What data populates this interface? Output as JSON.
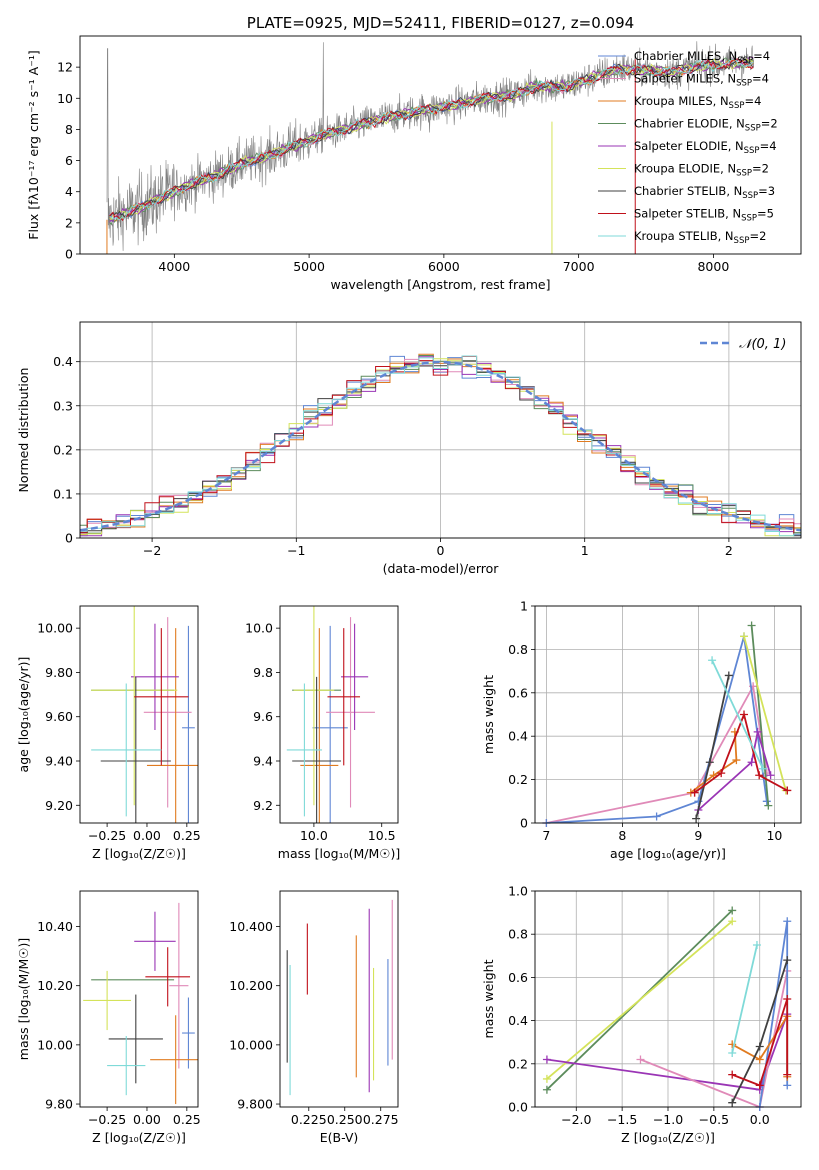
{
  "chart_data": [
    {
      "id": "spectrum",
      "type": "line",
      "title": "PLATE=0925, MJD=52411, FIBERID=0127, z=0.094",
      "xlabel": "wavelength [Angstrom, rest frame]",
      "ylabel": "Flux [fλ10⁻¹⁷ erg cm⁻² s⁻¹ A⁻¹]",
      "xlim": [
        3300,
        8650
      ],
      "ylim": [
        0,
        14
      ],
      "xticks": [
        4000,
        5000,
        6000,
        7000,
        8000
      ],
      "yticks": [
        0,
        2,
        4,
        6,
        8,
        10,
        12
      ],
      "data_series": {
        "name": "",
        "color": "#808080",
        "x": [
          3500,
          3700,
          3900,
          4100,
          4300,
          4500,
          4700,
          4900,
          5100,
          5300,
          5500,
          5700,
          5900,
          6100,
          6300,
          6500,
          6700,
          6900,
          7100,
          7300,
          7500,
          7700,
          7900,
          8100,
          8300
        ],
        "y": [
          2.2,
          2.8,
          3.6,
          4.4,
          5.0,
          5.8,
          6.3,
          7.0,
          7.6,
          8.1,
          8.6,
          9.0,
          9.3,
          9.6,
          10.0,
          10.2,
          10.8,
          10.7,
          11.3,
          11.9,
          11.8,
          11.7,
          12.1,
          12.2,
          12.3
        ]
      },
      "legend": [
        {
          "label": "Chabrier MILES, N",
          "sub": "SSP",
          "suffix": "=4",
          "color": "#5f86d4"
        },
        {
          "label": "Salpeter MILES, N",
          "sub": "SSP",
          "suffix": "=4",
          "color": "#e08ab8"
        },
        {
          "label": "Kroupa MILES, N",
          "sub": "SSP",
          "suffix": "=4",
          "color": "#e07b20"
        },
        {
          "label": "Chabrier ELODIE, N",
          "sub": "SSP",
          "suffix": "=2",
          "color": "#5c8c5c"
        },
        {
          "label": "Salpeter ELODIE, N",
          "sub": "SSP",
          "suffix": "=4",
          "color": "#9a35b5"
        },
        {
          "label": "Kroupa ELODIE, N",
          "sub": "SSP",
          "suffix": "=2",
          "color": "#d4e35a"
        },
        {
          "label": "Chabrier STELIB, N",
          "sub": "SSP",
          "suffix": "=3",
          "color": "#404040"
        },
        {
          "label": "Salpeter STELIB, N",
          "sub": "SSP",
          "suffix": "=5",
          "color": "#c0101a"
        },
        {
          "label": "Kroupa STELIB, N",
          "sub": "SSP",
          "suffix": "=2",
          "color": "#7fdad8"
        }
      ]
    },
    {
      "id": "residuals",
      "type": "histogram",
      "xlabel": "(data-model)/error",
      "ylabel": "Normed distribution",
      "xlim": [
        -2.5,
        2.5
      ],
      "ylim": [
        0,
        0.49
      ],
      "xticks": [
        -2,
        -1,
        0,
        1,
        2
      ],
      "yticks": [
        0.0,
        0.1,
        0.2,
        0.3,
        0.4
      ],
      "grid": true,
      "legend": [
        {
          "label": "𝒩(0, 1)",
          "color": "#5f86d4",
          "style": "dashed"
        }
      ],
      "bin_width": 0.1
    },
    {
      "id": "age_vs_Z",
      "type": "errorbar",
      "xlabel": "Z [log₁₀(Z/Z☉)]",
      "ylabel": "age  [log₁₀(age/yr)]",
      "xlim": [
        -0.42,
        0.32
      ],
      "ylim": [
        9.12,
        10.1
      ],
      "xticks": [
        -0.25,
        0.0,
        0.25
      ],
      "yticks": [
        9.2,
        9.4,
        9.6,
        9.8,
        10.0
      ],
      "points": [
        {
          "color": "#5f86d4",
          "x": 0.26,
          "xerr": 0.04,
          "y": 9.55,
          "yerr": 0.46
        },
        {
          "color": "#e08ab8",
          "x": 0.13,
          "xerr": 0.15,
          "y": 9.62,
          "yerr": 0.43
        },
        {
          "color": "#e07b20",
          "x": 0.18,
          "xerr": 0.18,
          "y": 9.38,
          "yerr": 0.62
        },
        {
          "color": "#5c8c5c",
          "x": -0.09,
          "xerr": 0.26,
          "y": 9.72,
          "yerr": 0.0
        },
        {
          "color": "#9a35b5",
          "x": 0.05,
          "xerr": 0.15,
          "y": 9.78,
          "yerr": 0.24
        },
        {
          "color": "#d4e35a",
          "x": -0.08,
          "xerr": 0.27,
          "y": 9.72,
          "yerr": 0.52
        },
        {
          "color": "#404040",
          "x": -0.07,
          "xerr": 0.22,
          "y": 9.4,
          "yerr": 0.38
        },
        {
          "color": "#c0101a",
          "x": 0.09,
          "xerr": 0.17,
          "y": 9.69,
          "yerr": 0.31
        },
        {
          "color": "#7fdad8",
          "x": -0.13,
          "xerr": 0.22,
          "y": 9.45,
          "yerr": 0.3
        }
      ]
    },
    {
      "id": "age_vs_mass",
      "type": "errorbar",
      "xlabel": "mass [log₁₀(M/M☉)]",
      "xlim": [
        9.75,
        10.62
      ],
      "ylim": [
        9.12,
        10.1
      ],
      "xticks": [
        10.0,
        10.5
      ],
      "yticks": [
        9.2,
        9.4,
        9.6,
        9.8,
        10.0
      ],
      "points": [
        {
          "color": "#5f86d4",
          "x": 10.12,
          "xerr": 0.13,
          "y": 9.55,
          "yerr": 0.46
        },
        {
          "color": "#e08ab8",
          "x": 10.27,
          "xerr": 0.18,
          "y": 9.62,
          "yerr": 0.43
        },
        {
          "color": "#e07b20",
          "x": 10.04,
          "xerr": 0.14,
          "y": 9.38,
          "yerr": 0.62
        },
        {
          "color": "#5c8c5c",
          "x": 10.02,
          "xerr": 0.18,
          "y": 9.72,
          "yerr": 0.0
        },
        {
          "color": "#9a35b5",
          "x": 10.3,
          "xerr": 0.1,
          "y": 9.78,
          "yerr": 0.24
        },
        {
          "color": "#d4e35a",
          "x": 10.0,
          "xerr": 0.15,
          "y": 9.72,
          "yerr": 0.52
        },
        {
          "color": "#404040",
          "x": 10.02,
          "xerr": 0.18,
          "y": 9.4,
          "yerr": 0.38
        },
        {
          "color": "#c0101a",
          "x": 10.22,
          "xerr": 0.12,
          "y": 9.69,
          "yerr": 0.31
        },
        {
          "color": "#7fdad8",
          "x": 9.93,
          "xerr": 0.13,
          "y": 9.45,
          "yerr": 0.3
        }
      ]
    },
    {
      "id": "weight_vs_age",
      "type": "line",
      "xlabel": "age  [log₁₀(age/yr)]",
      "ylabel": "mass weight",
      "xlim": [
        6.85,
        10.35
      ],
      "ylim": [
        0,
        1.0
      ],
      "xticks": [
        7,
        8,
        9,
        10
      ],
      "yticks": [
        0.0,
        0.2,
        0.4,
        0.6,
        0.8,
        1.0
      ],
      "grid": true,
      "series": [
        {
          "color": "#e08ab8",
          "x": [
            7.0,
            8.95,
            9.72,
            9.9
          ],
          "y": [
            0.0,
            0.14,
            0.63,
            0.23
          ]
        },
        {
          "color": "#5f86d4",
          "x": [
            7.0,
            8.45,
            9.0,
            9.6,
            9.9
          ],
          "y": [
            0.0,
            0.03,
            0.1,
            0.86,
            0.1
          ]
        },
        {
          "color": "#e07b20",
          "x": [
            8.9,
            9.2,
            9.5,
            9.48
          ],
          "y": [
            0.14,
            0.22,
            0.29,
            0.42
          ]
        },
        {
          "color": "#5c8c5c",
          "x": [
            9.7,
            9.92
          ],
          "y": [
            0.91,
            0.08
          ]
        },
        {
          "color": "#9a35b5",
          "x": [
            9.0,
            9.7,
            9.78,
            9.95
          ],
          "y": [
            0.06,
            0.28,
            0.42,
            0.22
          ]
        },
        {
          "color": "#d4e35a",
          "x": [
            9.6,
            10.15
          ],
          "y": [
            0.86,
            0.15
          ]
        },
        {
          "color": "#404040",
          "x": [
            8.97,
            9.15,
            9.4
          ],
          "y": [
            0.02,
            0.28,
            0.68
          ]
        },
        {
          "color": "#c0101a",
          "x": [
            8.95,
            9.3,
            9.6,
            9.8,
            10.17
          ],
          "y": [
            0.14,
            0.23,
            0.5,
            0.22,
            0.15
          ]
        },
        {
          "color": "#7fdad8",
          "x": [
            9.18,
            9.85
          ],
          "y": [
            0.75,
            0.25
          ]
        }
      ]
    },
    {
      "id": "mass_vs_Z",
      "type": "errorbar",
      "xlabel": "Z [log₁₀(Z/Z☉)]",
      "ylabel": "mass [log₁₀(M/M☉)]",
      "xlim": [
        -0.42,
        0.32
      ],
      "ylim": [
        9.79,
        10.52
      ],
      "xticks": [
        -0.25,
        0.0,
        0.25
      ],
      "yticks": [
        9.8,
        10.0,
        10.2,
        10.4
      ],
      "points": [
        {
          "color": "#5f86d4",
          "x": 0.26,
          "xerr": 0.04,
          "y": 10.04,
          "yerr": 0.12
        },
        {
          "color": "#e08ab8",
          "x": 0.2,
          "xerr": 0.06,
          "y": 10.2,
          "yerr": 0.28
        },
        {
          "color": "#e07b20",
          "x": 0.18,
          "xerr": 0.16,
          "y": 9.95,
          "yerr": 0.15
        },
        {
          "color": "#5c8c5c",
          "x": -0.09,
          "xerr": 0.26,
          "y": 10.22,
          "yerr": 0.0
        },
        {
          "color": "#9a35b5",
          "x": 0.05,
          "xerr": 0.13,
          "y": 10.35,
          "yerr": 0.1
        },
        {
          "color": "#d4e35a",
          "x": -0.25,
          "xerr": 0.15,
          "y": 10.15,
          "yerr": 0.1
        },
        {
          "color": "#404040",
          "x": -0.07,
          "xerr": 0.17,
          "y": 10.02,
          "yerr": 0.15
        },
        {
          "color": "#c0101a",
          "x": 0.13,
          "xerr": 0.14,
          "y": 10.23,
          "yerr": 0.1
        },
        {
          "color": "#7fdad8",
          "x": -0.13,
          "xerr": 0.12,
          "y": 9.93,
          "yerr": 0.1
        }
      ]
    },
    {
      "id": "mass_vs_EBV",
      "type": "errorbar",
      "xlabel": "E(B-V)",
      "xlim": [
        0.205,
        0.287
      ],
      "ylim": [
        9.79,
        10.52
      ],
      "xticks": [
        0.225,
        0.25,
        0.275
      ],
      "yticks": [
        9.8,
        10.0,
        10.2,
        10.4
      ],
      "points": [
        {
          "color": "#404040",
          "x": 0.21,
          "y": 10.13,
          "yerr": 0.19
        },
        {
          "color": "#7fdad8",
          "x": 0.212,
          "y": 10.05,
          "yerr": 0.22
        },
        {
          "color": "#c0101a",
          "x": 0.224,
          "y": 10.29,
          "yerr": 0.12
        },
        {
          "color": "#e07b20",
          "x": 0.258,
          "y": 10.13,
          "yerr": 0.24
        },
        {
          "color": "#9a35b5",
          "x": 0.267,
          "y": 10.15,
          "yerr": 0.31
        },
        {
          "color": "#d4e35a",
          "x": 0.27,
          "y": 10.07,
          "yerr": 0.19
        },
        {
          "color": "#5f86d4",
          "x": 0.28,
          "y": 10.11,
          "yerr": 0.18
        },
        {
          "color": "#e08ab8",
          "x": 0.283,
          "y": 10.22,
          "yerr": 0.27
        }
      ]
    },
    {
      "id": "weight_vs_Z",
      "type": "line",
      "xlabel": "Z [log₁₀(Z/Z☉)]",
      "ylabel": "mass weight",
      "xlim": [
        -2.45,
        0.45
      ],
      "ylim": [
        0,
        1.0
      ],
      "xticks": [
        -2.0,
        -1.5,
        -1.0,
        -0.5,
        0.0
      ],
      "yticks": [
        0.0,
        0.2,
        0.4,
        0.6,
        0.8,
        1.0
      ],
      "grid": true,
      "series": [
        {
          "color": "#5c8c5c",
          "x": [
            -2.32,
            -0.3
          ],
          "y": [
            0.08,
            0.91
          ]
        },
        {
          "color": "#d4e35a",
          "x": [
            -2.32,
            -0.3
          ],
          "y": [
            0.13,
            0.86
          ]
        },
        {
          "color": "#9a35b5",
          "x": [
            -2.32,
            0.0,
            0.3
          ],
          "y": [
            0.22,
            0.08,
            0.43
          ]
        },
        {
          "color": "#e08ab8",
          "x": [
            -1.3,
            0.0,
            0.3
          ],
          "y": [
            0.22,
            0.0,
            0.63
          ]
        },
        {
          "color": "#5f86d4",
          "x": [
            0.0,
            0.3,
            0.3
          ],
          "y": [
            0.0,
            0.86,
            0.1
          ]
        },
        {
          "color": "#e07b20",
          "x": [
            -0.3,
            0.0,
            0.3,
            0.3
          ],
          "y": [
            0.29,
            0.22,
            0.42,
            0.14
          ]
        },
        {
          "color": "#404040",
          "x": [
            -0.3,
            0.0,
            0.3
          ],
          "y": [
            0.02,
            0.28,
            0.68
          ]
        },
        {
          "color": "#c0101a",
          "x": [
            -0.3,
            0.0,
            0.3,
            0.3
          ],
          "y": [
            0.15,
            0.1,
            0.5,
            0.15
          ]
        },
        {
          "color": "#7fdad8",
          "x": [
            -0.3,
            -0.03
          ],
          "y": [
            0.25,
            0.75
          ]
        }
      ]
    }
  ]
}
